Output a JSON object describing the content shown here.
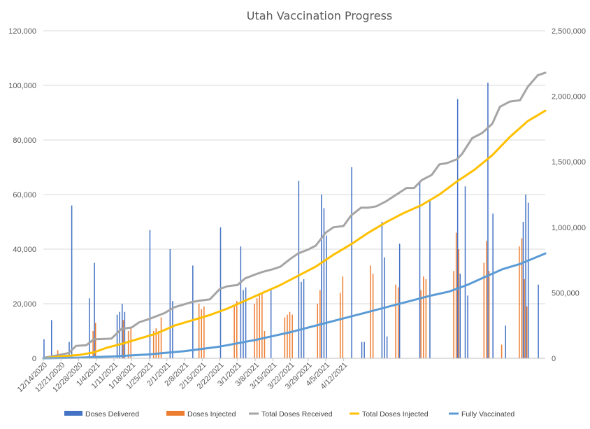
{
  "chart_data": {
    "type": "bar+line",
    "title": "Utah Vaccination Progress",
    "x_tick_labels": [
      "12/14/2020",
      "12/21/2020",
      "12/28/2020",
      "1/4/2021",
      "1/11/2021",
      "1/18/2021",
      "1/25/2021",
      "2/1/2021",
      "2/8/2021",
      "2/15/2021",
      "2/22/2021",
      "3/1/2021",
      "3/8/2021",
      "3/15/2021",
      "3/22/2021",
      "3/29/2021",
      "4/5/2021",
      "4/12/2021"
    ],
    "x_range": [
      "12/14/2020",
      "4/18/2021"
    ],
    "y_left": {
      "min": 0,
      "max": 120000,
      "step": 20000,
      "tick_labels": [
        "0",
        "20,000",
        "40,000",
        "60,000",
        "80,000",
        "100,000",
        "120,000"
      ]
    },
    "y_right": {
      "min": 0,
      "max": 2500000,
      "step": 500000,
      "tick_labels": [
        "0",
        "500,000",
        "1,000,000",
        "1,500,000",
        "2,000,000",
        "2,500,000"
      ]
    },
    "grid": true,
    "legend_position": "bottom",
    "colors": {
      "doses_delivered": "#4472c4",
      "doses_injected": "#ed7d31",
      "total_received": "#a5a5a5",
      "total_injected": "#ffc000",
      "fully_vaccinated": "#5b9bd5"
    },
    "series": [
      {
        "name": "Doses Delivered",
        "kind": "bar",
        "axis": "left",
        "daily": [
          7000,
          0,
          0,
          14000,
          0,
          0,
          0,
          0,
          0,
          0,
          6000,
          56000,
          0,
          0,
          0,
          0,
          0,
          0,
          22000,
          0,
          35000,
          0,
          0,
          0,
          0,
          0,
          0,
          0,
          0,
          16000,
          17000,
          20000,
          17000,
          0,
          0,
          0,
          0,
          0,
          0,
          0,
          0,
          0,
          47000,
          0,
          0,
          0,
          0,
          0,
          0,
          0,
          40000,
          21000,
          0,
          0,
          0,
          0,
          0,
          0,
          0,
          34000,
          0,
          0,
          0,
          0,
          0,
          0,
          0,
          0,
          0,
          0,
          48000,
          0,
          0,
          0,
          0,
          0,
          0,
          0,
          41000,
          25000,
          26000,
          0,
          0,
          0,
          0,
          0,
          0,
          0,
          0,
          0,
          25000,
          0,
          0,
          0,
          0,
          0,
          0,
          0,
          0,
          0,
          0,
          65000,
          28000,
          29000,
          0,
          0,
          0,
          0,
          0,
          0,
          60000,
          55000,
          45000,
          0,
          0,
          0,
          0,
          0,
          0,
          0,
          0,
          0,
          70000,
          0,
          0,
          0,
          6000,
          6000,
          0,
          0,
          0,
          0,
          0,
          0,
          50000,
          37000,
          8000,
          0,
          0,
          0,
          0,
          42000,
          0,
          0,
          0,
          0,
          0,
          0,
          0,
          65000,
          0,
          0,
          0,
          58000,
          0,
          0,
          0,
          0,
          0,
          0,
          0,
          0,
          0,
          0,
          95000,
          31000,
          0,
          63000,
          23000,
          0,
          0,
          0,
          0,
          0,
          0,
          0,
          101000,
          0,
          53000,
          0,
          0,
          0,
          0,
          12000,
          0,
          0,
          0,
          0,
          0,
          0,
          50000,
          60000,
          57000,
          0,
          0,
          0,
          27000
        ]
      },
      {
        "name": "Doses Injected",
        "kind": "bar",
        "axis": "left",
        "daily": [
          0,
          0,
          0,
          0,
          0,
          3000,
          0,
          0,
          0,
          0,
          0,
          0,
          0,
          0,
          0,
          0,
          0,
          0,
          0,
          10000,
          13000,
          0,
          0,
          0,
          0,
          0,
          0,
          0,
          0,
          0,
          0,
          14000,
          0,
          10000,
          11000,
          0,
          0,
          0,
          0,
          0,
          0,
          0,
          0,
          10000,
          11000,
          10000,
          15000,
          0,
          0,
          0,
          0,
          0,
          0,
          0,
          0,
          0,
          0,
          0,
          0,
          0,
          0,
          20000,
          18000,
          19000,
          0,
          0,
          0,
          0,
          0,
          0,
          0,
          0,
          0,
          0,
          0,
          19000,
          21000,
          0,
          0,
          0,
          0,
          0,
          0,
          20000,
          22000,
          23000,
          24000,
          10000,
          0,
          0,
          0,
          0,
          0,
          0,
          0,
          15000,
          16000,
          17000,
          16000,
          0,
          0,
          0,
          0,
          0,
          0,
          0,
          0,
          0,
          20000,
          25000,
          0,
          0,
          0,
          0,
          0,
          0,
          0,
          24000,
          30000,
          0,
          0,
          0,
          0,
          0,
          0,
          0,
          0,
          0,
          0,
          34000,
          31000,
          0,
          0,
          0,
          0,
          0,
          0,
          0,
          0,
          27000,
          26000,
          0,
          0,
          0,
          0,
          0,
          0,
          0,
          0,
          25000,
          30000,
          29000,
          0,
          0,
          0,
          0,
          0,
          0,
          0,
          0,
          0,
          0,
          32000,
          46000,
          40000,
          0,
          0,
          0,
          0,
          0,
          0,
          0,
          0,
          0,
          35000,
          43000,
          32000,
          0,
          0,
          0,
          0,
          5000,
          0,
          0,
          0,
          0,
          0,
          0,
          41000,
          44000,
          29000,
          19000
        ]
      },
      {
        "name": "Total Doses Received",
        "kind": "line",
        "axis": "right",
        "points": [
          [
            0,
            0
          ],
          [
            1,
            7000
          ],
          [
            5,
            21000
          ],
          [
            10,
            40000
          ],
          [
            13,
            95000
          ],
          [
            17,
            100000
          ],
          [
            20,
            145000
          ],
          [
            27,
            150000
          ],
          [
            31,
            225000
          ],
          [
            35,
            235000
          ],
          [
            38,
            275000
          ],
          [
            42,
            300000
          ],
          [
            48,
            345000
          ],
          [
            52,
            390000
          ],
          [
            59,
            430000
          ],
          [
            62,
            440000
          ],
          [
            66,
            450000
          ],
          [
            70,
            530000
          ],
          [
            73,
            550000
          ],
          [
            77,
            560000
          ],
          [
            80,
            610000
          ],
          [
            84,
            640000
          ],
          [
            87,
            660000
          ],
          [
            91,
            680000
          ],
          [
            94,
            700000
          ],
          [
            98,
            760000
          ],
          [
            101,
            800000
          ],
          [
            105,
            830000
          ],
          [
            108,
            860000
          ],
          [
            112,
            960000
          ],
          [
            115,
            1000000
          ],
          [
            119,
            1010000
          ],
          [
            122,
            1090000
          ],
          [
            126,
            1150000
          ],
          [
            129,
            1150000
          ],
          [
            132,
            1160000
          ],
          [
            136,
            1200000
          ],
          [
            140,
            1250000
          ],
          [
            144,
            1300000
          ],
          [
            147,
            1300000
          ],
          [
            150,
            1360000
          ],
          [
            154,
            1400000
          ],
          [
            157,
            1480000
          ],
          [
            160,
            1490000
          ],
          [
            164,
            1520000
          ],
          [
            166,
            1560000
          ],
          [
            170,
            1680000
          ],
          [
            174,
            1720000
          ],
          [
            178,
            1790000
          ],
          [
            181,
            1920000
          ],
          [
            185,
            1960000
          ],
          [
            189,
            1970000
          ],
          [
            192,
            2070000
          ],
          [
            196,
            2160000
          ],
          [
            199,
            2180000
          ]
        ]
      },
      {
        "name": "Total Doses Injected",
        "kind": "line",
        "axis": "right",
        "points": [
          [
            0,
            0
          ],
          [
            7,
            15000
          ],
          [
            14,
            25000
          ],
          [
            20,
            45000
          ],
          [
            25,
            80000
          ],
          [
            31,
            110000
          ],
          [
            38,
            150000
          ],
          [
            45,
            190000
          ],
          [
            52,
            250000
          ],
          [
            59,
            290000
          ],
          [
            66,
            330000
          ],
          [
            73,
            380000
          ],
          [
            80,
            440000
          ],
          [
            87,
            500000
          ],
          [
            94,
            560000
          ],
          [
            101,
            630000
          ],
          [
            108,
            700000
          ],
          [
            115,
            790000
          ],
          [
            122,
            870000
          ],
          [
            129,
            960000
          ],
          [
            136,
            1040000
          ],
          [
            143,
            1110000
          ],
          [
            150,
            1170000
          ],
          [
            157,
            1250000
          ],
          [
            164,
            1350000
          ],
          [
            171,
            1440000
          ],
          [
            178,
            1550000
          ],
          [
            185,
            1690000
          ],
          [
            192,
            1810000
          ],
          [
            199,
            1890000
          ]
        ]
      },
      {
        "name": "Fully Vaccinated",
        "kind": "line",
        "axis": "right",
        "points": [
          [
            0,
            0
          ],
          [
            14,
            5000
          ],
          [
            28,
            15000
          ],
          [
            42,
            30000
          ],
          [
            56,
            55000
          ],
          [
            70,
            90000
          ],
          [
            84,
            140000
          ],
          [
            98,
            200000
          ],
          [
            112,
            270000
          ],
          [
            126,
            340000
          ],
          [
            140,
            410000
          ],
          [
            154,
            480000
          ],
          [
            161,
            510000
          ],
          [
            168,
            560000
          ],
          [
            175,
            620000
          ],
          [
            182,
            680000
          ],
          [
            189,
            720000
          ],
          [
            199,
            800000
          ]
        ]
      }
    ]
  }
}
